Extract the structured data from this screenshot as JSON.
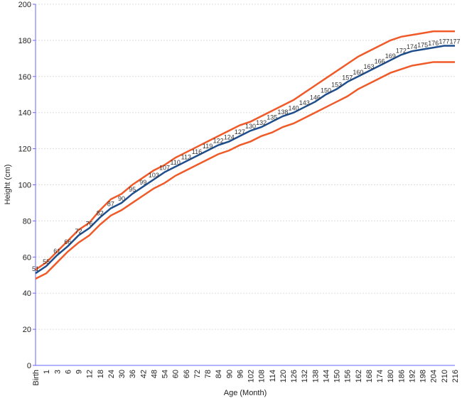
{
  "chart_data": {
    "type": "line",
    "x_label": "Age (Month)",
    "y_label": "Height (cm)",
    "categories": [
      "Birth",
      "1",
      "3",
      "6",
      "9",
      "12",
      "18",
      "24",
      "30",
      "36",
      "42",
      "48",
      "54",
      "60",
      "66",
      "72",
      "78",
      "84",
      "90",
      "96",
      "102",
      "108",
      "114",
      "120",
      "126",
      "132",
      "138",
      "144",
      "150",
      "156",
      "162",
      "168",
      "174",
      "180",
      "186",
      "192",
      "198",
      "204",
      "210",
      "216"
    ],
    "series": [
      {
        "color": "#f05a28",
        "values": [
          53,
          57,
          63,
          69,
          75,
          79,
          86,
          92,
          95,
          100,
          104,
          108,
          111,
          115,
          118,
          121,
          124,
          127,
          130,
          133,
          135,
          138,
          141,
          144,
          147,
          151,
          155,
          159,
          163,
          167,
          171,
          174,
          177,
          180,
          182,
          183,
          184,
          185,
          185,
          185
        ]
      },
      {
        "color": "#1f4e8c",
        "values": [
          51,
          55,
          61,
          66,
          72,
          76,
          82,
          87,
          90,
          95,
          99,
          103,
          107,
          110,
          113,
          116,
          119,
          122,
          124,
          127,
          130,
          132,
          135,
          138,
          140,
          143,
          146,
          150,
          153,
          157,
          160,
          163,
          166,
          169,
          172,
          174,
          175,
          176,
          177,
          177
        ],
        "data_labels": true
      },
      {
        "color": "#f05a28",
        "values": [
          48,
          51,
          57,
          63,
          68,
          72,
          78,
          83,
          86,
          90,
          94,
          98,
          101,
          105,
          108,
          111,
          114,
          117,
          119,
          122,
          124,
          127,
          129,
          132,
          134,
          137,
          140,
          143,
          146,
          149,
          153,
          156,
          159,
          162,
          164,
          166,
          167,
          168,
          168,
          168
        ]
      }
    ],
    "ylim": [
      0,
      200
    ],
    "yticks": [
      0,
      20,
      40,
      60,
      80,
      100,
      120,
      140,
      160,
      180,
      200
    ],
    "grid": true
  }
}
